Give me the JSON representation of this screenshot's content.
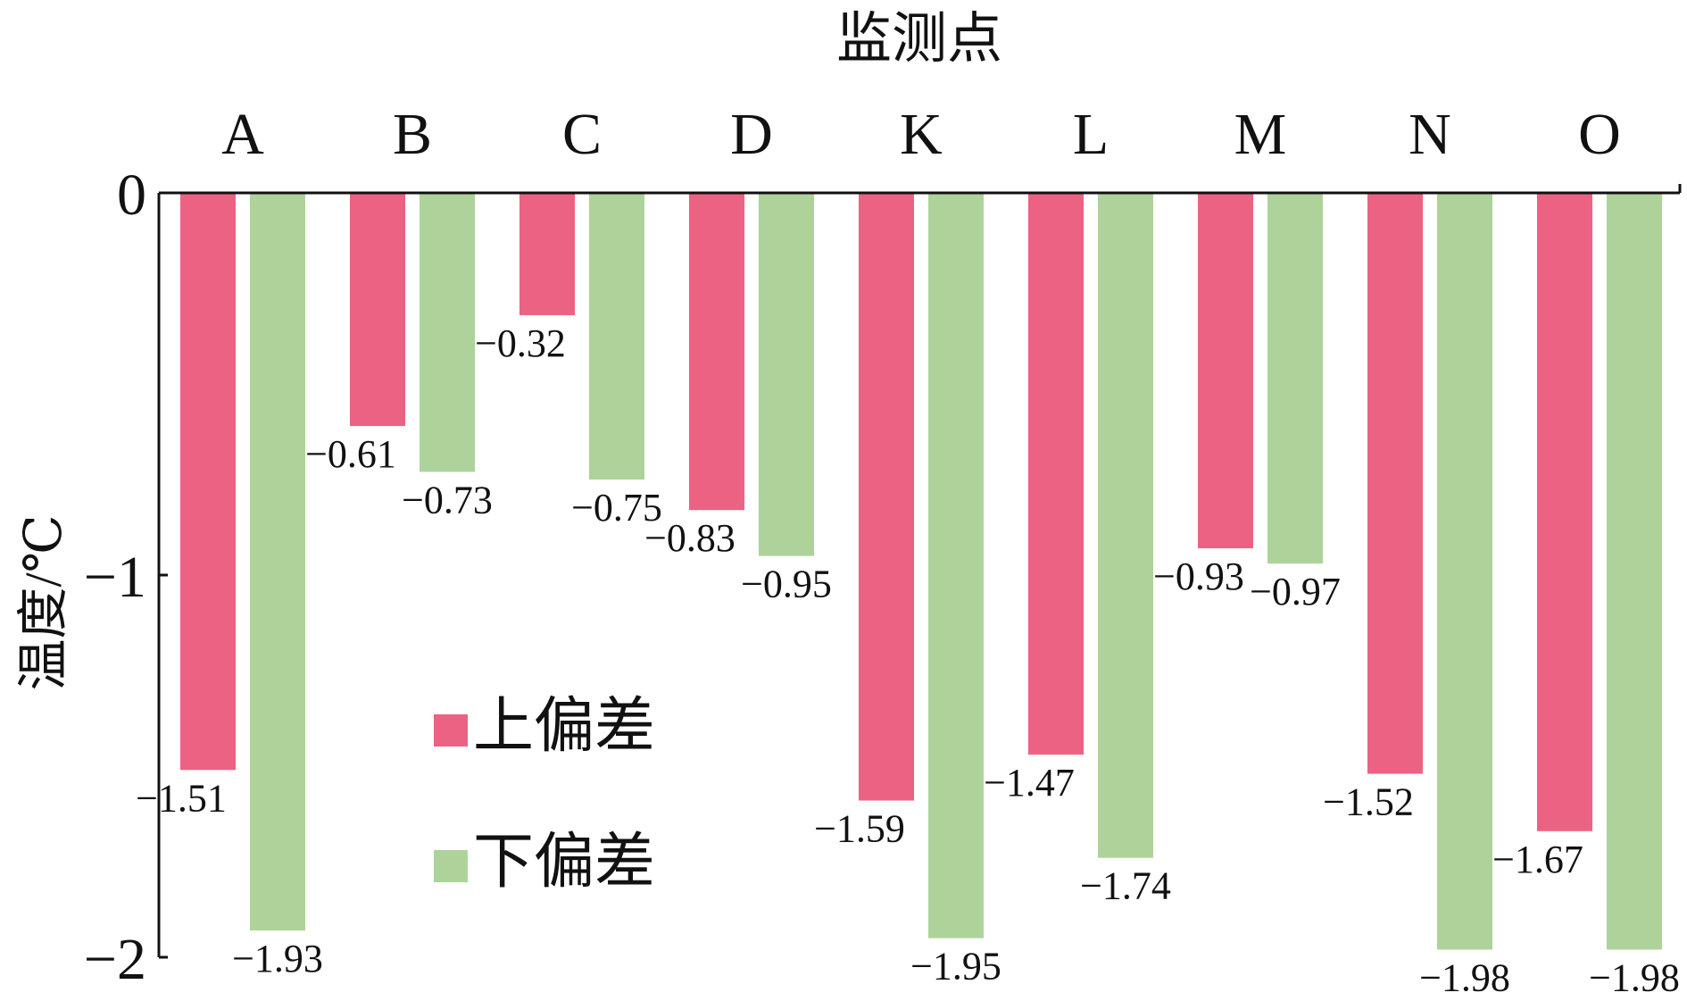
{
  "chart_data": {
    "type": "bar",
    "title": "监测点",
    "xlabel": "监测点",
    "ylabel": "温度/℃",
    "categories": [
      "A",
      "B",
      "C",
      "D",
      "K",
      "L",
      "M",
      "N",
      "O"
    ],
    "series": [
      {
        "name": "上偏差",
        "color": "#ec6282",
        "values": [
          -1.51,
          -0.61,
          -0.32,
          -0.83,
          -1.59,
          -1.47,
          -0.93,
          -1.52,
          -1.67
        ],
        "labels": [
          "−1.51",
          "−0.61",
          "−0.32",
          "−0.83",
          "−1.59",
          "−1.47",
          "−0.93",
          "−1.52",
          "−1.67"
        ]
      },
      {
        "name": "下偏差",
        "color": "#aed39a",
        "values": [
          -1.93,
          -0.73,
          -0.75,
          -0.95,
          -1.95,
          -1.74,
          -0.97,
          -1.98,
          -1.98
        ],
        "labels": [
          "−1.93",
          "−0.73",
          "−0.75",
          "−0.95",
          "−1.95",
          "−1.74",
          "−0.97",
          "−1.98",
          "−1.98"
        ]
      }
    ],
    "ylim": [
      -2,
      0
    ],
    "yticks": [
      {
        "value": 0,
        "label": "0"
      },
      {
        "value": -1,
        "label": "−1"
      },
      {
        "value": -2,
        "label": "−2"
      }
    ],
    "x_axis_position": "top",
    "grid": false,
    "legend_position": "center-left"
  }
}
